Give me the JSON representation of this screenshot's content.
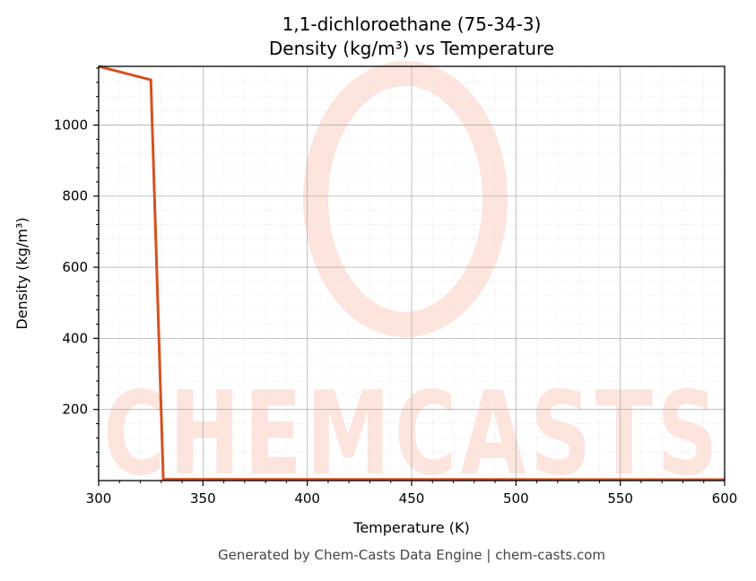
{
  "chart_data": {
    "type": "line",
    "title": "1,1-dichloroethane (75-34-3)",
    "subtitle": "Density (kg/m³) vs Temperature",
    "xlabel": "Temperature (K)",
    "ylabel": "Density (kg/m³)",
    "xlim": [
      300,
      600
    ],
    "ylim": [
      0,
      1165
    ],
    "xticks": [
      300,
      350,
      400,
      450,
      500,
      550,
      600
    ],
    "yticks": [
      200,
      400,
      600,
      800,
      1000
    ],
    "grid": true,
    "series": [
      {
        "color": "#d4521f",
        "x": [
          300,
          325,
          331,
          600
        ],
        "y": [
          1165,
          1127,
          3.5,
          2.4
        ]
      }
    ]
  },
  "watermark": {
    "text": "CHEMCASTS",
    "color": "#fde4dc"
  },
  "footer": "Generated by Chem-Casts Data Engine | chem-casts.com"
}
